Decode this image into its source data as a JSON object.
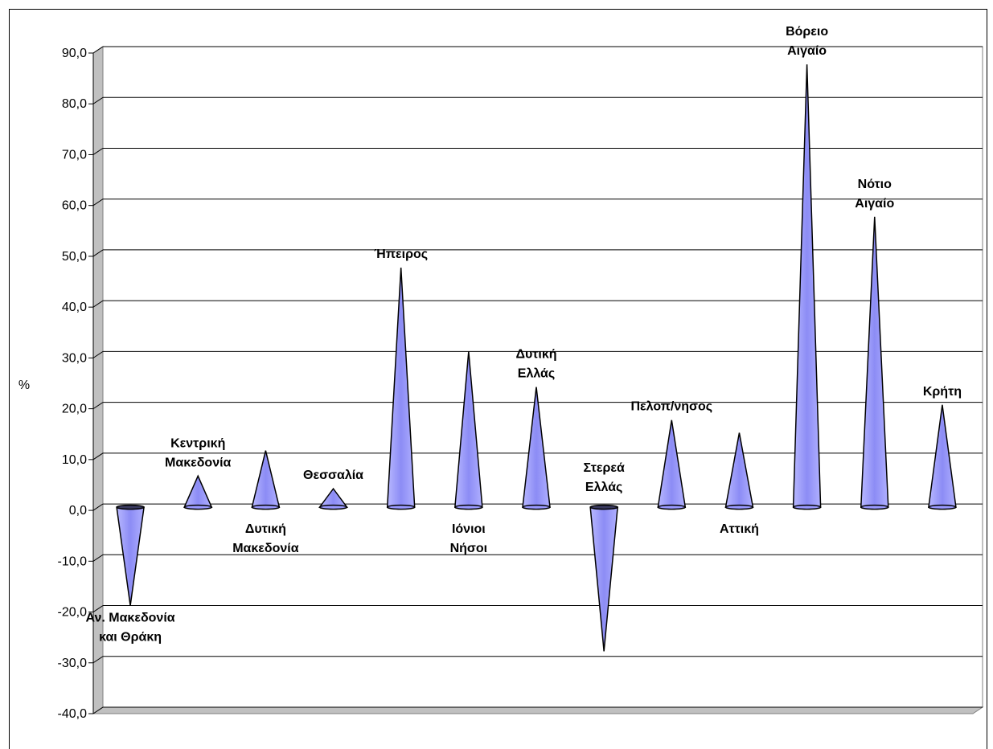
{
  "chart_data": {
    "type": "bar",
    "bar_shape": "cone",
    "ylabel": "%",
    "ylim": [
      -40,
      90
    ],
    "y_ticks": [
      "-40,0",
      "-30,0",
      "-20,0",
      "-10,0",
      "0,0",
      "10,0",
      "20,0",
      "30,0",
      "40,0",
      "50,0",
      "60,0",
      "70,0",
      "80,0",
      "90,0"
    ],
    "grid": true,
    "bar_color": "#9999ff",
    "categories": [
      [
        "Αν. Μακεδονία",
        "και Θράκη"
      ],
      [
        "Κεντρική",
        "Μακεδονία"
      ],
      [
        "Δυτική",
        "Μακεδονία"
      ],
      [
        "Θεσσαλία"
      ],
      [
        "Ήπειρος"
      ],
      [
        "Ιόνιοι",
        "Νήσοι"
      ],
      [
        "Δυτική",
        "Ελλάς"
      ],
      [
        "Στερεά",
        "Ελλάς"
      ],
      [
        "Πελοπ/νησος"
      ],
      [
        "Αττική"
      ],
      [
        "Βόρειο",
        "Αιγαίο"
      ],
      [
        "Νότιο",
        "Αιγαίο"
      ],
      [
        "Κρήτη"
      ]
    ],
    "values": [
      -20.0,
      5.5,
      10.5,
      3.0,
      46.5,
      30.0,
      23.0,
      -29.0,
      16.5,
      14.0,
      86.5,
      56.5,
      19.5
    ]
  }
}
